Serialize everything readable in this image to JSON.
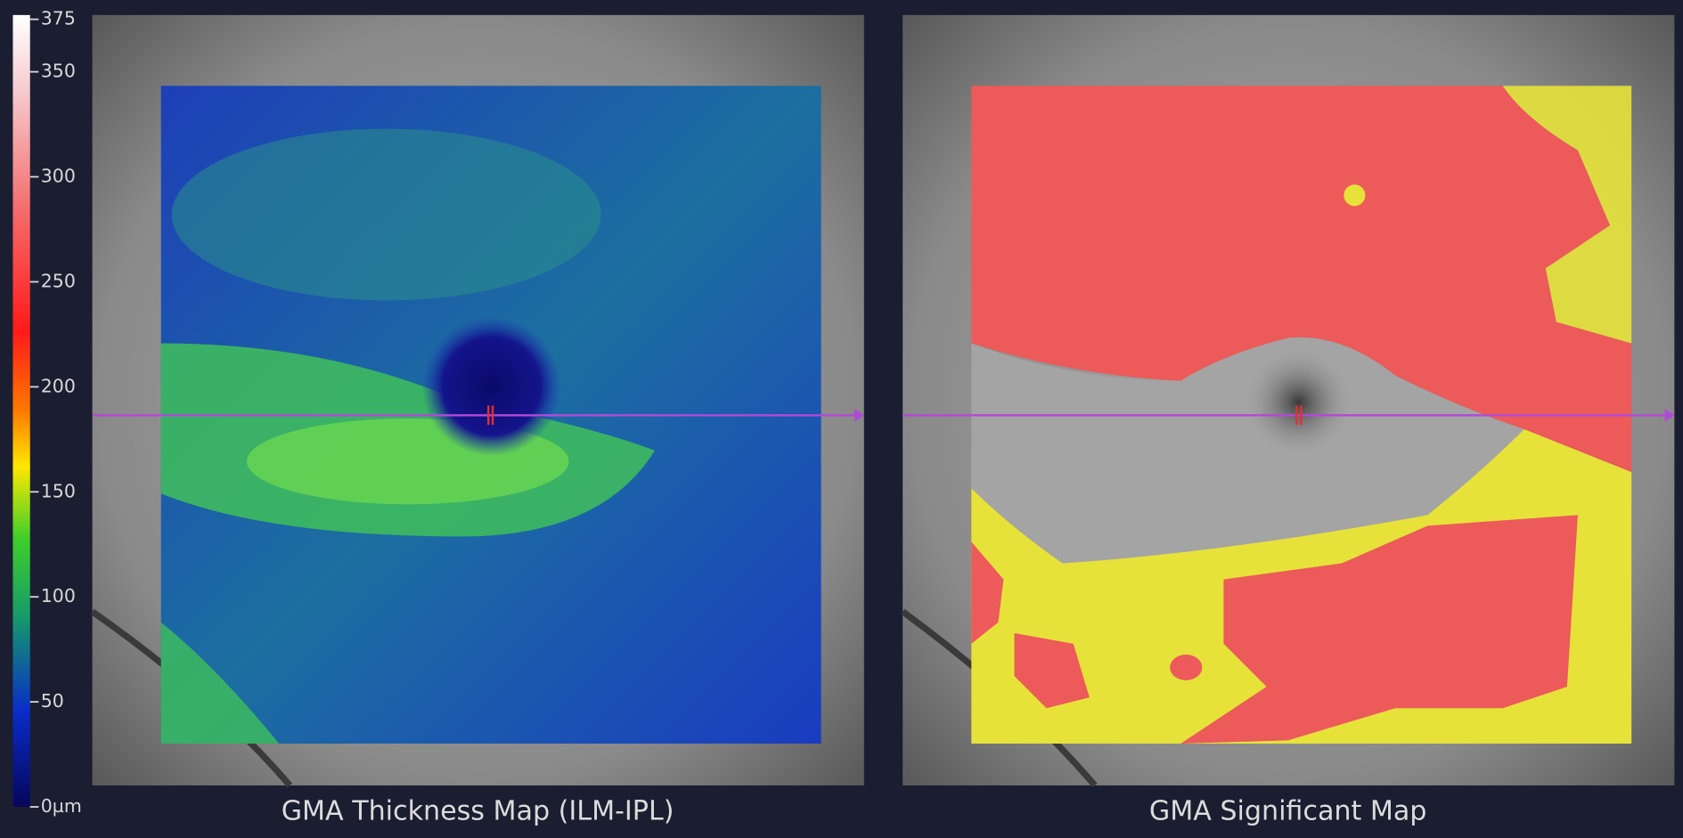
{
  "colorbar": {
    "range": [
      0,
      375
    ],
    "ticks": [
      {
        "value": 0,
        "label": "0µm"
      },
      50,
      100,
      150,
      200,
      250,
      300,
      350,
      375
    ]
  },
  "panels": [
    {
      "title": "GMA Thickness Map (ILM-IPL)"
    },
    {
      "title": "GMA Significant Map"
    }
  ]
}
